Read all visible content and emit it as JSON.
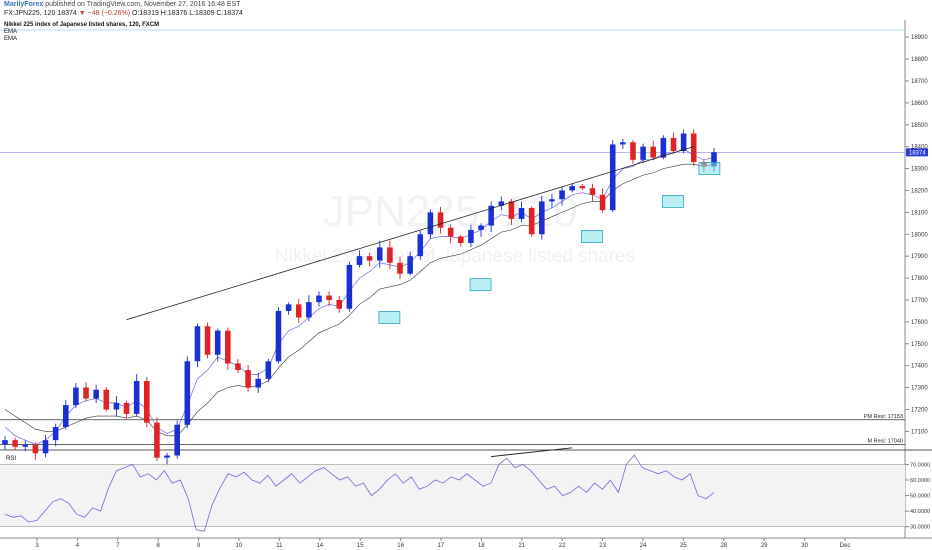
{
  "header": {
    "author": "MarilyForex",
    "published_text": " published on TradingView.com, November 27, 2016 16:48 EST",
    "symbol_line": "FX:JPN225, 120",
    "last_value": "18374",
    "change_text": "▼ −48 (−0.26%)",
    "ohlc_text": "O:18319 H:18376 L:18309 C:18374"
  },
  "legend": {
    "title": "Nikkei 225 index of Japanese listed shares, 120, FXCM",
    "items": [
      "EMA",
      "EMA"
    ]
  },
  "watermark": {
    "symbol": "JPN225, 120",
    "name": "Nikkei 225 index of Japanese listed shares"
  },
  "colors": {
    "up": "#1a2fd4",
    "down": "#e02222",
    "ema_fast": "#6b6be0",
    "ema_slow": "#333333",
    "trendline": "#222222",
    "support_box": "#7fe0ec",
    "price_line": "#9aa0ee",
    "last_label_bg": "#2b3bd6",
    "rsi": "#6b6bd6",
    "grid": "#ffffff"
  },
  "chart_data": {
    "type": "candlestick",
    "title": "Nikkei 225 index of Japanese listed shares, 120, FXCM",
    "y_ticks": [
      17100,
      17200,
      17300,
      17400,
      17500,
      17600,
      17700,
      17800,
      17900,
      18000,
      18100,
      18200,
      18300,
      18400,
      18500,
      18600,
      18700,
      18800,
      18900
    ],
    "y_range": [
      17015,
      18960
    ],
    "x_labels": [
      "3",
      "4",
      "7",
      "8",
      "9",
      "10",
      "11",
      "14",
      "15",
      "16",
      "17",
      "18",
      "21",
      "22",
      "23",
      "24",
      "25",
      "28",
      "29",
      "30",
      "Dec"
    ],
    "last_price": 18374,
    "last_price_label": "18374",
    "resistance_lines": [
      {
        "label": "PM Resi: 17153",
        "value": 17153
      },
      {
        "label": "M Resi: 17040",
        "value": 17040
      }
    ],
    "close_path": [
      17060,
      17030,
      17040,
      17000,
      17060,
      17120,
      17220,
      17300,
      17250,
      17290,
      17200,
      17230,
      17180,
      17330,
      17140,
      16980,
      16990,
      17130,
      17420,
      17580,
      17450,
      17560,
      17410,
      17380,
      17300,
      17340,
      17420,
      17650,
      17680,
      17620,
      17690,
      17720,
      17700,
      17660,
      17860,
      17900,
      17880,
      17940,
      17870,
      17820,
      17900,
      18000,
      18100,
      18030,
      17990,
      17960,
      18020,
      18040,
      18130,
      18150,
      18070,
      18120,
      18000,
      18150,
      18160,
      18200,
      18220,
      18210,
      18180,
      18110,
      18410,
      18420,
      18340,
      18400,
      18350,
      18440,
      18380,
      18460,
      18330,
      18310,
      18374
    ],
    "ema_fast_path": [
      17120,
      17080,
      17060,
      17040,
      17060,
      17100,
      17170,
      17220,
      17240,
      17250,
      17230,
      17230,
      17210,
      17240,
      17200,
      17120,
      17090,
      17110,
      17220,
      17340,
      17380,
      17440,
      17420,
      17400,
      17360,
      17360,
      17390,
      17500,
      17560,
      17580,
      17620,
      17660,
      17680,
      17670,
      17740,
      17800,
      17830,
      17870,
      17860,
      17850,
      17870,
      17920,
      17980,
      17990,
      17990,
      17980,
      18000,
      18020,
      18060,
      18090,
      18080,
      18100,
      18070,
      18100,
      18120,
      18150,
      18180,
      18190,
      18180,
      18160,
      18250,
      18300,
      18310,
      18340,
      18340,
      18370,
      18370,
      18390,
      18360,
      18340,
      18350
    ],
    "ema_slow_path": [
      17200,
      17170,
      17140,
      17110,
      17100,
      17100,
      17120,
      17140,
      17160,
      17170,
      17170,
      17170,
      17160,
      17170,
      17150,
      17100,
      17080,
      17080,
      17130,
      17190,
      17230,
      17280,
      17300,
      17310,
      17300,
      17310,
      17330,
      17390,
      17440,
      17470,
      17510,
      17550,
      17570,
      17590,
      17630,
      17680,
      17710,
      17750,
      17760,
      17770,
      17790,
      17830,
      17870,
      17890,
      17900,
      17910,
      17930,
      17950,
      17980,
      18010,
      18020,
      18040,
      18040,
      18060,
      18080,
      18100,
      18120,
      18140,
      18150,
      18150,
      18200,
      18230,
      18250,
      18270,
      18280,
      18300,
      18310,
      18320,
      18320,
      18310,
      18320
    ],
    "rsi": {
      "label": "RSI",
      "ticks": [
        30,
        40,
        50,
        60,
        70
      ],
      "tick_labels": [
        "30.0000",
        "40.0000",
        "50.0000",
        "60.0000",
        "70.0000"
      ],
      "bands": [
        30,
        70
      ],
      "range": [
        24,
        78
      ],
      "values": [
        38,
        36,
        37,
        33,
        34,
        40,
        46,
        48,
        45,
        38,
        36,
        42,
        40,
        55,
        66,
        68,
        70,
        62,
        64,
        60,
        66,
        58,
        60,
        48,
        28,
        27,
        44,
        55,
        64,
        62,
        65,
        60,
        58,
        63,
        56,
        60,
        64,
        58,
        62,
        66,
        68,
        64,
        60,
        62,
        56,
        58,
        50,
        54,
        60,
        64,
        58,
        62,
        54,
        56,
        60,
        58,
        62,
        60,
        64,
        60,
        56,
        58,
        70,
        74,
        68,
        70,
        66,
        60,
        54,
        56,
        50,
        52,
        56,
        52,
        58,
        54,
        60,
        52,
        70,
        76,
        68,
        66,
        64,
        66,
        62,
        60,
        64,
        50,
        48,
        52
      ]
    }
  }
}
